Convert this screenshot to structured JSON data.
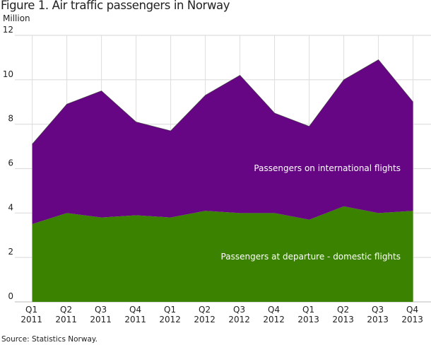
{
  "chart_data": {
    "type": "area",
    "title": "Figure 1. Air traffic passengers in Norway",
    "ylabel": "Million",
    "source": "Source: Statistics Norway.",
    "stacked": true,
    "ylim": [
      0,
      12
    ],
    "yticks": [
      0,
      2,
      4,
      6,
      8,
      10,
      12
    ],
    "grid": true,
    "categories": [
      [
        "Q1",
        "2011"
      ],
      [
        "Q2",
        "2011"
      ],
      [
        "Q3",
        "2011"
      ],
      [
        "Q4",
        "2011"
      ],
      [
        "Q1",
        "2012"
      ],
      [
        "Q2",
        "2012"
      ],
      [
        "Q3",
        "2012"
      ],
      [
        "Q4",
        "2012"
      ],
      [
        "Q1",
        "2013"
      ],
      [
        "Q2",
        "2013"
      ],
      [
        "Q3",
        "2013"
      ],
      [
        "Q4",
        "2013"
      ]
    ],
    "series": [
      {
        "name": "Passengers at departure - domestic flights",
        "color": "#3a8200",
        "values": [
          3.5,
          4.0,
          3.8,
          3.9,
          3.8,
          4.1,
          4.0,
          4.0,
          3.7,
          4.3,
          4.0,
          4.1
        ]
      },
      {
        "name": "Passengers on international flights",
        "color": "#660685",
        "values": [
          3.6,
          4.9,
          5.7,
          4.2,
          3.9,
          5.2,
          6.2,
          4.5,
          4.2,
          5.7,
          6.9,
          4.9
        ]
      }
    ]
  }
}
